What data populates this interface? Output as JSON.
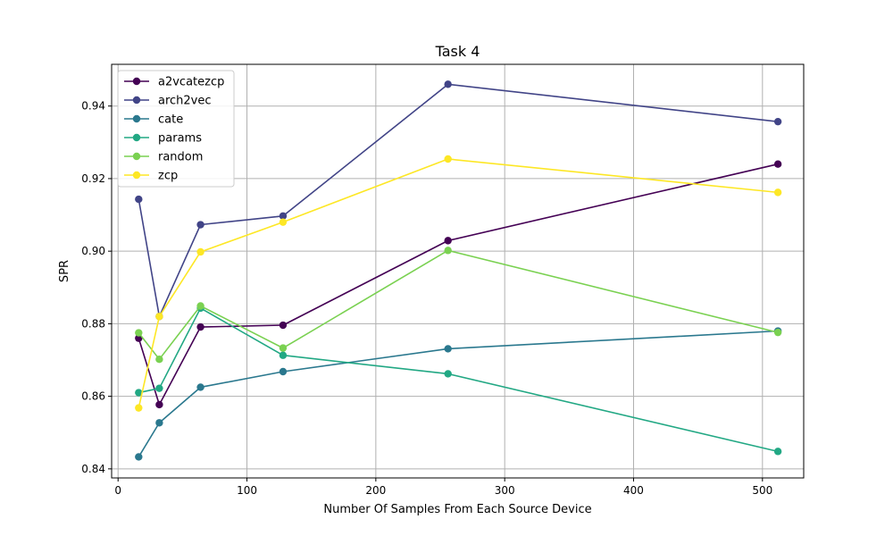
{
  "chart_data": {
    "type": "line",
    "title": "Task 4",
    "xlabel": "Number Of Samples From Each Source Device",
    "ylabel": "SPR",
    "xlim": [
      -5,
      532
    ],
    "ylim": [
      0.8375,
      0.9515
    ],
    "x_ticks": [
      0,
      100,
      200,
      300,
      400,
      500
    ],
    "y_ticks": [
      0.84,
      0.86,
      0.88,
      0.9,
      0.92,
      0.94
    ],
    "x_tick_labels": [
      "0",
      "100",
      "200",
      "300",
      "400",
      "500"
    ],
    "y_tick_labels": [
      "0.84",
      "0.86",
      "0.88",
      "0.90",
      "0.92",
      "0.94"
    ],
    "grid": true,
    "legend_position": "top-left",
    "x": [
      16,
      32,
      64,
      128,
      256,
      512
    ],
    "series": [
      {
        "name": "a2vcatezcp",
        "color": "#440154",
        "values": [
          0.876,
          0.8577,
          0.8791,
          0.8796,
          0.9029,
          0.924
        ]
      },
      {
        "name": "arch2vec",
        "color": "#414487",
        "values": [
          0.9143,
          0.882,
          0.9073,
          0.9097,
          0.946,
          0.9357
        ]
      },
      {
        "name": "cate",
        "color": "#2a788e",
        "values": [
          0.8433,
          0.8527,
          0.8625,
          0.8668,
          0.8731,
          0.878
        ]
      },
      {
        "name": "params",
        "color": "#22a884",
        "values": [
          0.861,
          0.8622,
          0.8843,
          0.8713,
          0.8662,
          0.8448
        ]
      },
      {
        "name": "random",
        "color": "#7ad151",
        "values": [
          0.8775,
          0.8702,
          0.8849,
          0.8733,
          0.9002,
          0.8776
        ]
      },
      {
        "name": "zcp",
        "color": "#fde725",
        "values": [
          0.8568,
          0.882,
          0.8998,
          0.908,
          0.9254,
          0.9162
        ]
      }
    ]
  }
}
